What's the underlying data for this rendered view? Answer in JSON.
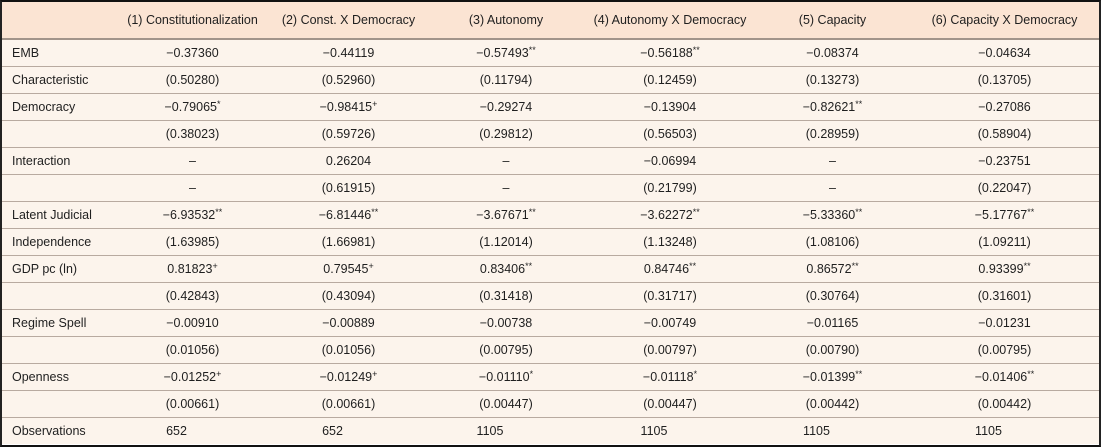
{
  "table": {
    "columns": [
      "",
      "(1) Constitutionalization",
      "(2) Const. X Democracy",
      "(3) Autonomy",
      "(4) Autonomy X Democracy",
      "(5) Capacity",
      "(6) Capacity X Democracy"
    ],
    "rows": [
      {
        "label": "EMB",
        "cells": [
          {
            "v": "−0.37360"
          },
          {
            "v": "−0.44119"
          },
          {
            "v": "−0.57493",
            "s": "**"
          },
          {
            "v": "−0.56188",
            "s": "**"
          },
          {
            "v": "−0.08374"
          },
          {
            "v": "−0.04634"
          }
        ]
      },
      {
        "label": "Characteristic",
        "cells": [
          {
            "v": "(0.50280)"
          },
          {
            "v": "(0.52960)"
          },
          {
            "v": "(0.11794)"
          },
          {
            "v": "(0.12459)"
          },
          {
            "v": "(0.13273)"
          },
          {
            "v": "(0.13705)"
          }
        ]
      },
      {
        "label": "Democracy",
        "cells": [
          {
            "v": "−0.79065",
            "s": "*"
          },
          {
            "v": "−0.98415",
            "s": "+"
          },
          {
            "v": "−0.29274"
          },
          {
            "v": "−0.13904"
          },
          {
            "v": "−0.82621",
            "s": "**"
          },
          {
            "v": "−0.27086"
          }
        ]
      },
      {
        "label": "",
        "cells": [
          {
            "v": "(0.38023)"
          },
          {
            "v": "(0.59726)"
          },
          {
            "v": "(0.29812)"
          },
          {
            "v": "(0.56503)"
          },
          {
            "v": "(0.28959)"
          },
          {
            "v": "(0.58904)"
          }
        ]
      },
      {
        "label": "Interaction",
        "cells": [
          {
            "v": "–"
          },
          {
            "v": "0.26204"
          },
          {
            "v": "–"
          },
          {
            "v": "−0.06994"
          },
          {
            "v": "–"
          },
          {
            "v": "−0.23751"
          }
        ]
      },
      {
        "label": "",
        "cells": [
          {
            "v": "–"
          },
          {
            "v": "(0.61915)"
          },
          {
            "v": "–"
          },
          {
            "v": "(0.21799)"
          },
          {
            "v": "–"
          },
          {
            "v": "(0.22047)"
          }
        ]
      },
      {
        "label": "Latent Judicial",
        "cells": [
          {
            "v": "−6.93532",
            "s": "**"
          },
          {
            "v": "−6.81446",
            "s": "**"
          },
          {
            "v": "−3.67671",
            "s": "**"
          },
          {
            "v": "−3.62272",
            "s": "**"
          },
          {
            "v": "−5.33360",
            "s": "**"
          },
          {
            "v": "−5.17767",
            "s": "**"
          }
        ]
      },
      {
        "label": "Independence",
        "cells": [
          {
            "v": "(1.63985)"
          },
          {
            "v": "(1.66981)"
          },
          {
            "v": "(1.12014)"
          },
          {
            "v": "(1.13248)"
          },
          {
            "v": "(1.08106)"
          },
          {
            "v": "(1.09211)"
          }
        ]
      },
      {
        "label": "GDP pc (ln)",
        "cells": [
          {
            "v": "0.81823",
            "s": "+"
          },
          {
            "v": "0.79545",
            "s": "+"
          },
          {
            "v": "0.83406",
            "s": "**"
          },
          {
            "v": "0.84746",
            "s": "**"
          },
          {
            "v": "0.86572",
            "s": "**"
          },
          {
            "v": "0.93399",
            "s": "**"
          }
        ]
      },
      {
        "label": "",
        "cells": [
          {
            "v": "(0.42843)"
          },
          {
            "v": "(0.43094)"
          },
          {
            "v": "(0.31418)"
          },
          {
            "v": "(0.31717)"
          },
          {
            "v": "(0.30764)"
          },
          {
            "v": "(0.31601)"
          }
        ]
      },
      {
        "label": "Regime Spell",
        "cells": [
          {
            "v": "−0.00910"
          },
          {
            "v": "−0.00889"
          },
          {
            "v": "−0.00738"
          },
          {
            "v": "−0.00749"
          },
          {
            "v": "−0.01165"
          },
          {
            "v": "−0.01231"
          }
        ]
      },
      {
        "label": "",
        "cells": [
          {
            "v": "(0.01056)"
          },
          {
            "v": "(0.01056)"
          },
          {
            "v": "(0.00795)"
          },
          {
            "v": "(0.00797)"
          },
          {
            "v": "(0.00790)"
          },
          {
            "v": "(0.00795)"
          }
        ]
      },
      {
        "label": "Openness",
        "cells": [
          {
            "v": "−0.01252",
            "s": "+"
          },
          {
            "v": "−0.01249",
            "s": "+"
          },
          {
            "v": "−0.01110",
            "s": "*"
          },
          {
            "v": "−0.01118",
            "s": "*"
          },
          {
            "v": "−0.01399",
            "s": "**"
          },
          {
            "v": "−0.01406",
            "s": "**"
          }
        ]
      },
      {
        "label": "",
        "cells": [
          {
            "v": "(0.00661)"
          },
          {
            "v": "(0.00661)"
          },
          {
            "v": "(0.00447)"
          },
          {
            "v": "(0.00447)"
          },
          {
            "v": "(0.00442)"
          },
          {
            "v": "(0.00442)"
          }
        ]
      },
      {
        "label": "Observations",
        "obs": true,
        "cells": [
          {
            "v": "652"
          },
          {
            "v": "652"
          },
          {
            "v": "1105"
          },
          {
            "v": "1105"
          },
          {
            "v": "1105"
          },
          {
            "v": "1105"
          }
        ]
      }
    ],
    "colors": {
      "header_bg": "#fbe4d3",
      "body_bg": "#fcf4ec",
      "row_rule": "#b8aaa0",
      "header_rule": "#a2948a",
      "frame": "#111111"
    }
  }
}
